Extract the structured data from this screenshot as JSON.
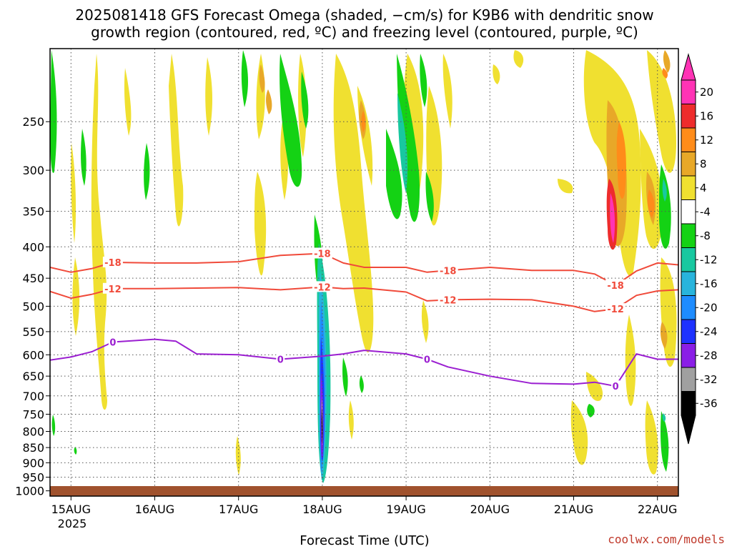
{
  "chart_data": {
    "type": "heatmap",
    "title_lines": [
      "2025081418 GFS Forecast Omega (shaded, −cm/s) for K9B6 with dendritic snow",
      "growth region (contoured, red, ºC) and freezing level (contoured, purple, ºC)"
    ],
    "xlabel": "Forecast Time (UTC)",
    "ylabel": "",
    "credit": "coolwx.com/models",
    "x_ticks": [
      "15AUG",
      "16AUG",
      "17AUG",
      "18AUG",
      "19AUG",
      "20AUG",
      "21AUG",
      "22AUG"
    ],
    "x_year": "2025",
    "xlim": [
      "2025-08-14 18:00",
      "2025-08-22 06:00"
    ],
    "y_ticks": [
      250,
      300,
      350,
      400,
      450,
      500,
      550,
      600,
      650,
      700,
      750,
      800,
      850,
      900,
      950,
      1000
    ],
    "ylim": [
      1020,
      190
    ],
    "y_scale": "log-pressure",
    "grid": true,
    "colorbar": {
      "ticks": [
        "20",
        "16",
        "12",
        "8",
        "4",
        "-4",
        "-8",
        "-12",
        "-16",
        "-20",
        "-24",
        "-28",
        "-32",
        "-36"
      ],
      "colors": [
        "#ff33b5",
        "#ee2c2c",
        "#ff8c1a",
        "#e8a828",
        "#f0e030",
        "#ffffff",
        "#14d214",
        "#18c8a0",
        "#28b4dc",
        "#1e8cff",
        "#1e32ff",
        "#8a1ee6",
        "#a0a0a0",
        "#000000"
      ],
      "top_arrow_color": "#ff33b5",
      "bottom_arrow_color": "#000000"
    },
    "contours": [
      {
        "name": "-18",
        "color": "#f04a3a",
        "labels": [
          "-18",
          "-18",
          "-18",
          "-18"
        ],
        "points": [
          [
            "2025-08-14 18:00",
            432
          ],
          [
            "2025-08-15 00:00",
            440
          ],
          [
            "2025-08-15 06:00",
            434
          ],
          [
            "2025-08-15 12:00",
            424
          ],
          [
            "2025-08-16 00:00",
            425
          ],
          [
            "2025-08-16 12:00",
            425
          ],
          [
            "2025-08-17 00:00",
            423
          ],
          [
            "2025-08-17 12:00",
            413
          ],
          [
            "2025-08-18 00:00",
            410
          ],
          [
            "2025-08-18 06:00",
            425
          ],
          [
            "2025-08-18 12:00",
            432
          ],
          [
            "2025-08-19 00:00",
            432
          ],
          [
            "2025-08-19 06:00",
            440
          ],
          [
            "2025-08-19 12:00",
            437
          ],
          [
            "2025-08-20 00:00",
            432
          ],
          [
            "2025-08-20 12:00",
            437
          ],
          [
            "2025-08-21 00:00",
            437
          ],
          [
            "2025-08-21 06:00",
            443
          ],
          [
            "2025-08-21 12:00",
            462
          ],
          [
            "2025-08-21 18:00",
            438
          ],
          [
            "2025-08-22 00:00",
            425
          ],
          [
            "2025-08-22 06:00",
            428
          ]
        ]
      },
      {
        "name": "-12",
        "color": "#f04a3a",
        "labels": [
          "-12",
          "-12",
          "-12",
          "-12"
        ],
        "points": [
          [
            "2025-08-14 18:00",
            473
          ],
          [
            "2025-08-15 00:00",
            485
          ],
          [
            "2025-08-15 06:00",
            478
          ],
          [
            "2025-08-15 12:00",
            468
          ],
          [
            "2025-08-16 00:00",
            468
          ],
          [
            "2025-08-16 12:00",
            467
          ],
          [
            "2025-08-17 00:00",
            466
          ],
          [
            "2025-08-17 12:00",
            470
          ],
          [
            "2025-08-18 00:00",
            465
          ],
          [
            "2025-08-18 06:00",
            468
          ],
          [
            "2025-08-18 12:00",
            467
          ],
          [
            "2025-08-19 00:00",
            474
          ],
          [
            "2025-08-19 06:00",
            490
          ],
          [
            "2025-08-19 12:00",
            488
          ],
          [
            "2025-08-20 00:00",
            487
          ],
          [
            "2025-08-20 12:00",
            488
          ],
          [
            "2025-08-21 00:00",
            500
          ],
          [
            "2025-08-21 06:00",
            510
          ],
          [
            "2025-08-21 12:00",
            505
          ],
          [
            "2025-08-21 18:00",
            480
          ],
          [
            "2025-08-22 00:00",
            472
          ],
          [
            "2025-08-22 06:00",
            470
          ]
        ]
      },
      {
        "name": "0",
        "color": "#9b1fd1",
        "labels": [
          "0",
          "0",
          "0",
          "0"
        ],
        "points": [
          [
            "2025-08-14 18:00",
            612
          ],
          [
            "2025-08-15 00:00",
            605
          ],
          [
            "2025-08-15 06:00",
            593
          ],
          [
            "2025-08-15 12:00",
            572
          ],
          [
            "2025-08-16 00:00",
            566
          ],
          [
            "2025-08-16 06:00",
            570
          ],
          [
            "2025-08-16 12:00",
            598
          ],
          [
            "2025-08-17 00:00",
            600
          ],
          [
            "2025-08-17 06:00",
            605
          ],
          [
            "2025-08-17 12:00",
            610
          ],
          [
            "2025-08-18 00:00",
            603
          ],
          [
            "2025-08-18 06:00",
            598
          ],
          [
            "2025-08-18 12:00",
            590
          ],
          [
            "2025-08-19 00:00",
            598
          ],
          [
            "2025-08-19 06:00",
            610
          ],
          [
            "2025-08-19 12:00",
            628
          ],
          [
            "2025-08-20 00:00",
            650
          ],
          [
            "2025-08-20 12:00",
            668
          ],
          [
            "2025-08-21 00:00",
            670
          ],
          [
            "2025-08-21 06:00",
            665
          ],
          [
            "2025-08-21 12:00",
            675
          ],
          [
            "2025-08-21 18:00",
            598
          ],
          [
            "2025-08-22 00:00",
            610
          ],
          [
            "2025-08-22 06:00",
            610
          ]
        ]
      }
    ]
  }
}
